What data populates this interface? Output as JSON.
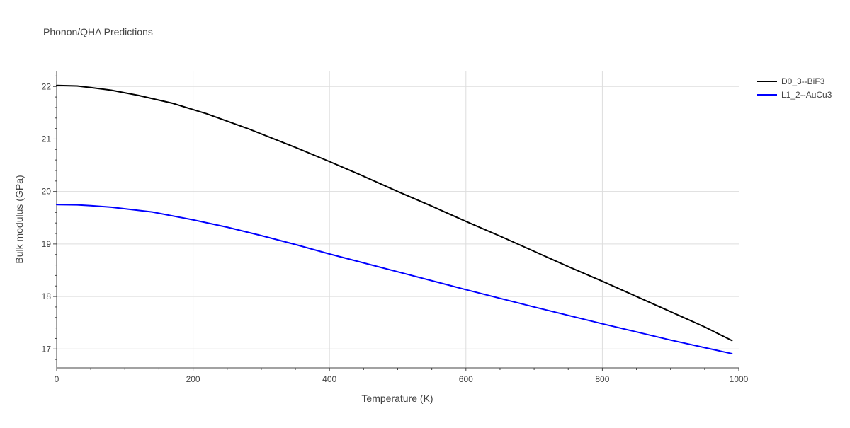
{
  "chart_data": {
    "type": "line",
    "title": "Phonon/QHA Predictions",
    "xlabel": "Temperature (K)",
    "ylabel": "Bulk modulus (GPa)",
    "xlim": [
      0,
      1000
    ],
    "ylim": [
      16.64,
      22.3
    ],
    "xticks": [
      0,
      200,
      400,
      600,
      800,
      1000
    ],
    "yticks": [
      17,
      18,
      19,
      20,
      21,
      22
    ],
    "grid": true,
    "legend_position": "top-right",
    "series": [
      {
        "name": "D0_3--BiF3",
        "color": "#000000",
        "x": [
          0,
          30,
          50,
          80,
          120,
          170,
          220,
          280,
          350,
          400,
          450,
          500,
          550,
          600,
          650,
          700,
          750,
          800,
          850,
          900,
          950,
          990
        ],
        "y": [
          22.02,
          22.01,
          21.98,
          21.93,
          21.83,
          21.68,
          21.48,
          21.2,
          20.84,
          20.57,
          20.29,
          20.0,
          19.72,
          19.43,
          19.15,
          18.86,
          18.57,
          18.29,
          18.0,
          17.71,
          17.42,
          17.16
        ]
      },
      {
        "name": "L1_2--AuCu3",
        "color": "#0000ff",
        "x": [
          0,
          30,
          50,
          80,
          140,
          200,
          250,
          300,
          350,
          400,
          500,
          600,
          700,
          800,
          900,
          990
        ],
        "y": [
          19.75,
          19.745,
          19.73,
          19.7,
          19.61,
          19.46,
          19.32,
          19.16,
          18.99,
          18.81,
          18.47,
          18.13,
          17.8,
          17.48,
          17.17,
          16.91
        ]
      }
    ]
  }
}
